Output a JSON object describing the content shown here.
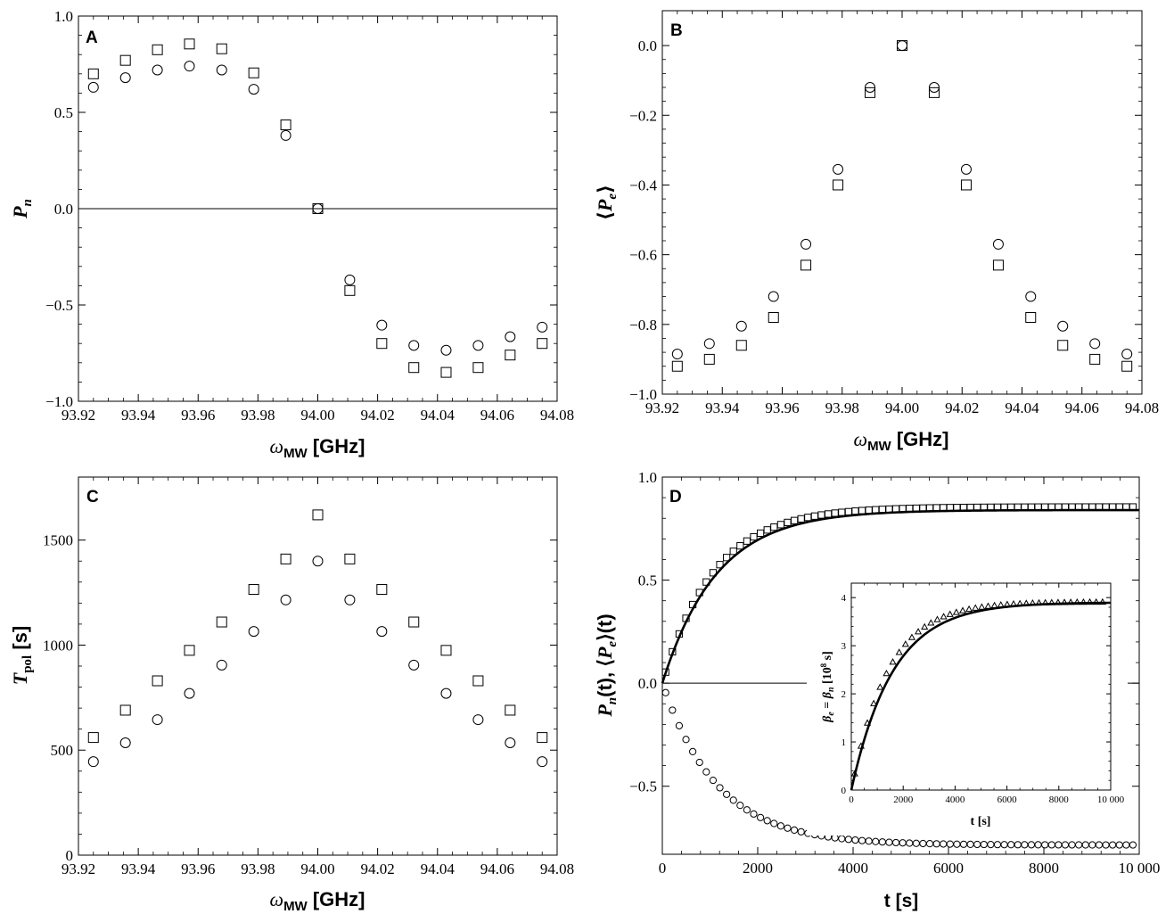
{
  "chart_data": [
    {
      "panel": "A",
      "type": "scatter",
      "xlabel": "ωMW [GHz]",
      "xlabel_main": "ω",
      "xlabel_sub": "MW",
      "xlabel_unit": " [GHz]",
      "ylabel": "Pn",
      "ylabel_main": "P",
      "ylabel_sub": "n",
      "xlim": [
        93.92,
        94.08
      ],
      "ylim": [
        -1.0,
        1.0
      ],
      "xticks": [
        "93.92",
        "93.94",
        "93.96",
        "93.98",
        "94.00",
        "94.02",
        "94.04",
        "94.06",
        "94.08"
      ],
      "yticks": [
        "-1.0",
        "-0.5",
        "0.0",
        "0.5",
        "1.0"
      ],
      "zero_line": true,
      "series": [
        {
          "marker": "square",
          "x": [
            93.925,
            93.9357,
            93.9464,
            93.9571,
            93.9679,
            93.9786,
            93.9893,
            94.0,
            94.0107,
            94.0214,
            94.0321,
            94.0429,
            94.0536,
            94.0643,
            94.075
          ],
          "y": [
            0.7,
            0.77,
            0.825,
            0.855,
            0.83,
            0.705,
            0.435,
            0.0,
            -0.425,
            -0.7,
            -0.825,
            -0.85,
            -0.825,
            -0.76,
            -0.7
          ]
        },
        {
          "marker": "circle",
          "x": [
            93.925,
            93.9357,
            93.9464,
            93.9571,
            93.9679,
            93.9786,
            93.9893,
            94.0,
            94.0107,
            94.0214,
            94.0321,
            94.0429,
            94.0536,
            94.0643,
            94.075
          ],
          "y": [
            0.63,
            0.68,
            0.72,
            0.74,
            0.72,
            0.62,
            0.38,
            0.0,
            -0.37,
            -0.605,
            -0.71,
            -0.735,
            -0.71,
            -0.665,
            -0.615
          ]
        }
      ]
    },
    {
      "panel": "B",
      "type": "scatter",
      "xlabel": "ωMW [GHz]",
      "xlabel_main": "ω",
      "xlabel_sub": "MW",
      "xlabel_unit": " [GHz]",
      "ylabel": "⟨Pe⟩",
      "ylabel_main": "P",
      "ylabel_sub": "e",
      "xlim": [
        93.92,
        94.08
      ],
      "ylim": [
        -1.0,
        0.1
      ],
      "xticks": [
        "93.92",
        "93.94",
        "93.96",
        "93.98",
        "94.00",
        "94.02",
        "94.04",
        "94.06",
        "94.08"
      ],
      "yticks": [
        "-1.0",
        "-0.8",
        "-0.6",
        "-0.4",
        "-0.2",
        "0.0"
      ],
      "zero_line": false,
      "series": [
        {
          "marker": "square",
          "x": [
            93.925,
            93.9357,
            93.9464,
            93.9571,
            93.9679,
            93.9786,
            93.9893,
            94.0,
            94.0107,
            94.0214,
            94.0321,
            94.0429,
            94.0536,
            94.0643,
            94.075
          ],
          "y": [
            -0.92,
            -0.9,
            -0.86,
            -0.78,
            -0.63,
            -0.4,
            -0.135,
            0.0,
            -0.135,
            -0.4,
            -0.63,
            -0.78,
            -0.86,
            -0.9,
            -0.92
          ]
        },
        {
          "marker": "circle",
          "x": [
            93.925,
            93.9357,
            93.9464,
            93.9571,
            93.9679,
            93.9786,
            93.9893,
            94.0,
            94.0107,
            94.0214,
            94.0321,
            94.0429,
            94.0536,
            94.0643,
            94.075
          ],
          "y": [
            -0.885,
            -0.855,
            -0.805,
            -0.72,
            -0.57,
            -0.355,
            -0.12,
            0.0,
            -0.12,
            -0.355,
            -0.57,
            -0.72,
            -0.805,
            -0.855,
            -0.885
          ]
        }
      ]
    },
    {
      "panel": "C",
      "type": "scatter",
      "xlabel": "ωMW [GHz]",
      "xlabel_main": "ω",
      "xlabel_sub": "MW",
      "xlabel_unit": " [GHz]",
      "ylabel": "Tpol [s]",
      "ylabel_main": "T",
      "ylabel_sub": "pol",
      "ylabel_unit": " [s]",
      "xlim": [
        93.92,
        94.08
      ],
      "ylim": [
        0,
        1800
      ],
      "xticks": [
        "93.92",
        "93.94",
        "93.96",
        "93.98",
        "94.00",
        "94.02",
        "94.04",
        "94.06",
        "94.08"
      ],
      "yticks": [
        "0",
        "500",
        "1000",
        "1500"
      ],
      "zero_line": false,
      "series": [
        {
          "marker": "square",
          "x": [
            93.925,
            93.9357,
            93.9464,
            93.9571,
            93.9679,
            93.9786,
            93.9893,
            94.0,
            94.0107,
            94.0214,
            94.0321,
            94.0429,
            94.0536,
            94.0643,
            94.075
          ],
          "y": [
            560,
            690,
            830,
            975,
            1110,
            1265,
            1410,
            1620,
            1410,
            1265,
            1110,
            975,
            830,
            690,
            560
          ]
        },
        {
          "marker": "circle",
          "x": [
            93.925,
            93.9357,
            93.9464,
            93.9571,
            93.9679,
            93.9786,
            93.9893,
            94.0,
            94.0107,
            94.0214,
            94.0321,
            94.0429,
            94.0536,
            94.0643,
            94.075
          ],
          "y": [
            445,
            535,
            645,
            770,
            905,
            1065,
            1215,
            1400,
            1215,
            1065,
            905,
            770,
            645,
            535,
            445
          ]
        }
      ]
    },
    {
      "panel": "D",
      "type": "scatter",
      "xlabel": "t [s]",
      "ylabel": "Pn(t), ⟨Pe⟩(t)",
      "xlim": [
        0,
        10000
      ],
      "ylim": [
        -0.83,
        1.0
      ],
      "xticks": [
        "0",
        "2000",
        "4000",
        "6000",
        "8000",
        "10 000"
      ],
      "yticks": [
        "-0.5",
        "0.0",
        "0.5",
        "1.0"
      ],
      "zero_line": true,
      "series": [
        {
          "marker": "square",
          "n_points": 70,
          "x_start": 70,
          "x_step": 142,
          "model": "exp_rise",
          "amplitude": 0.855,
          "tau": 1080
        },
        {
          "marker": "circle",
          "n_points": 70,
          "x_start": 70,
          "x_step": 142,
          "model": "exp_fall",
          "amplitude": -0.785,
          "tau": 1160
        },
        {
          "marker": "line",
          "model": "exp_rise",
          "amplitude": 0.84,
          "tau": 1140
        }
      ],
      "inset": {
        "type": "scatter",
        "xlabel": "t [s]",
        "ylabel": "βe = βn [10^8 s]",
        "xlim": [
          0,
          10000
        ],
        "ylim": [
          0,
          4.3
        ],
        "xticks": [
          "0",
          "2000",
          "4000",
          "6000",
          "8000",
          "10 000"
        ],
        "yticks": [
          "0",
          "1",
          "2",
          "3",
          "4"
        ],
        "series": [
          {
            "marker": "triangle",
            "n_points": 40,
            "x_start": 130,
            "x_step": 245,
            "model": "exp_rise",
            "amplitude": 3.92,
            "tau": 1400
          },
          {
            "marker": "line",
            "model": "exp_rise",
            "amplitude": 3.9,
            "tau": 1600
          }
        ]
      }
    }
  ]
}
